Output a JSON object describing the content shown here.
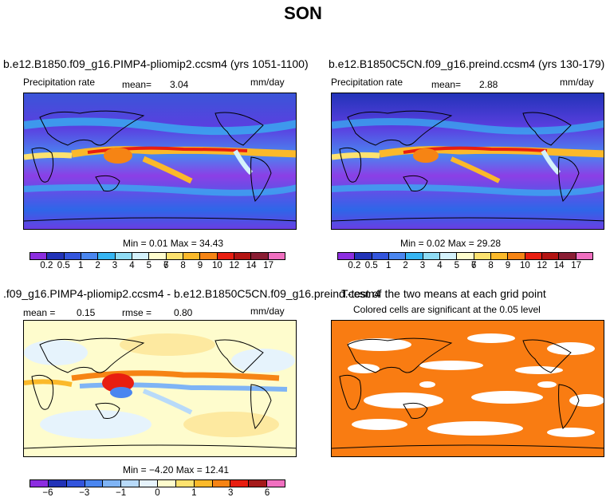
{
  "page": {
    "title": "SON"
  },
  "panels": {
    "top_left": {
      "title": "b.e12.B1850.f09_g16.PIMP4-pliomip2.ccsm4 (yrs 1051-1100)",
      "variable": "Precipitation rate",
      "mean_label": "mean=",
      "mean_value": "3.04",
      "units": "mm/day",
      "stats": "Min =   0.01 Max =  34.43",
      "colorbar_labels": [
        "0.2",
        "0.5",
        "1",
        "2",
        "3",
        "4",
        "5",
        "6",
        "7",
        "8",
        "9",
        "10",
        "12",
        "14",
        "17"
      ],
      "colorbar_colors": [
        "#8c2de0",
        "#2233b8",
        "#3355dd",
        "#4a86f0",
        "#36b5f2",
        "#8fdcf5",
        "#d4f1fb",
        "#fefccd",
        "#fde26f",
        "#fbb92a",
        "#f68414",
        "#e81e10",
        "#b31412",
        "#8a1d33",
        "#f070c0"
      ]
    },
    "top_right": {
      "title": "b.e12.B1850C5CN.f09_g16.preind.ccsm4 (yrs 130-179)",
      "variable": "Precipitation rate",
      "mean_label": "mean=",
      "mean_value": "2.88",
      "units": "mm/day",
      "stats": "Min =   0.02 Max =  29.28",
      "colorbar_labels": [
        "0.2",
        "0.5",
        "1",
        "2",
        "3",
        "4",
        "5",
        "6",
        "7",
        "8",
        "9",
        "10",
        "12",
        "14",
        "17"
      ],
      "colorbar_colors": [
        "#8c2de0",
        "#2233b8",
        "#3355dd",
        "#4a86f0",
        "#36b5f2",
        "#8fdcf5",
        "#d4f1fb",
        "#fefccd",
        "#fde26f",
        "#fbb92a",
        "#f68414",
        "#e81e10",
        "#b31412",
        "#8a1d33",
        "#f070c0"
      ]
    },
    "bottom_left": {
      "title": ".f09_g16.PIMP4-pliomip2.ccsm4 - b.e12.B1850C5CN.f09_g16.preind.ccsm4",
      "mean_label": "mean =",
      "mean_value": "0.15",
      "rmse_label": "rmse =",
      "rmse_value": "0.80",
      "units": "mm/day",
      "stats": "Min =  −4.20 Max =  12.41",
      "colorbar_labels": [
        "−6",
        "−3",
        "−1",
        "0",
        "1",
        "3",
        "6"
      ],
      "colorbar_colors": [
        "#8c2de0",
        "#2233b8",
        "#3355dd",
        "#4a86f0",
        "#7fb4f5",
        "#b8daf9",
        "#e6f3fc",
        "#fefccd",
        "#fde26f",
        "#fbb92a",
        "#f68414",
        "#e81e10",
        "#a51a1a",
        "#f070c0"
      ]
    },
    "bottom_right": {
      "title": "T-test of the two means at each grid point",
      "subtitle": "Colored cells are significant at the 0.05 level",
      "fill_color": "#f97c12"
    }
  }
}
